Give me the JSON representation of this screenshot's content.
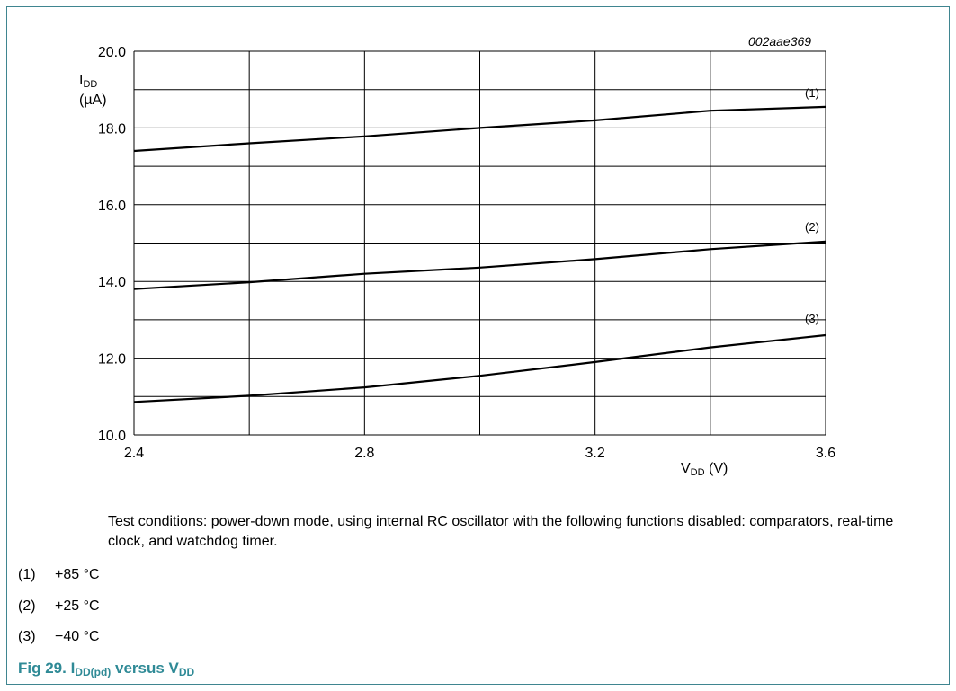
{
  "chart_data": {
    "type": "line",
    "figure_id": "002aae369",
    "ylabel_main": "I",
    "ylabel_sub": "DD",
    "ylabel_unit": "(µA)",
    "xlabel_main": "V",
    "xlabel_sub": "DD",
    "xlabel_unit": " (V)",
    "xlim": [
      2.4,
      3.6
    ],
    "ylim": [
      10.0,
      20.0
    ],
    "x_ticks": [
      "2.4",
      "2.8",
      "3.2",
      "3.6"
    ],
    "y_ticks": [
      "10.0",
      "12.0",
      "14.0",
      "16.0",
      "18.0",
      "20.0"
    ],
    "grid": true,
    "series": [
      {
        "name": "(1)",
        "x": [
          2.4,
          2.6,
          2.8,
          3.0,
          3.2,
          3.4,
          3.6
        ],
        "values": [
          17.4,
          17.6,
          17.78,
          18.0,
          18.2,
          18.45,
          18.55
        ]
      },
      {
        "name": "(2)",
        "x": [
          2.4,
          2.6,
          2.8,
          3.0,
          3.2,
          3.4,
          3.6
        ],
        "values": [
          13.8,
          13.98,
          14.2,
          14.36,
          14.58,
          14.84,
          15.04
        ]
      },
      {
        "name": "(3)",
        "x": [
          2.4,
          2.6,
          2.8,
          3.0,
          3.2,
          3.4,
          3.6
        ],
        "values": [
          10.86,
          11.02,
          11.24,
          11.54,
          11.9,
          12.28,
          12.6
        ]
      }
    ]
  },
  "note": "Test conditions: power-down mode, using internal RC oscillator with the following functions disabled: comparators, real-time clock, and watchdog timer.",
  "legend": [
    {
      "num": "(1)",
      "text": "+85 °C"
    },
    {
      "num": "(2)",
      "text": "+25 °C"
    },
    {
      "num": "(3)",
      "text": "−40 °C"
    }
  ],
  "caption": {
    "prefix": "Fig 29.  I",
    "sub1": "DD(pd)",
    "mid": " versus V",
    "sub2": "DD"
  },
  "colors": {
    "frame": "#3f8590",
    "caption": "#2f8a96",
    "lines": "#000000"
  }
}
